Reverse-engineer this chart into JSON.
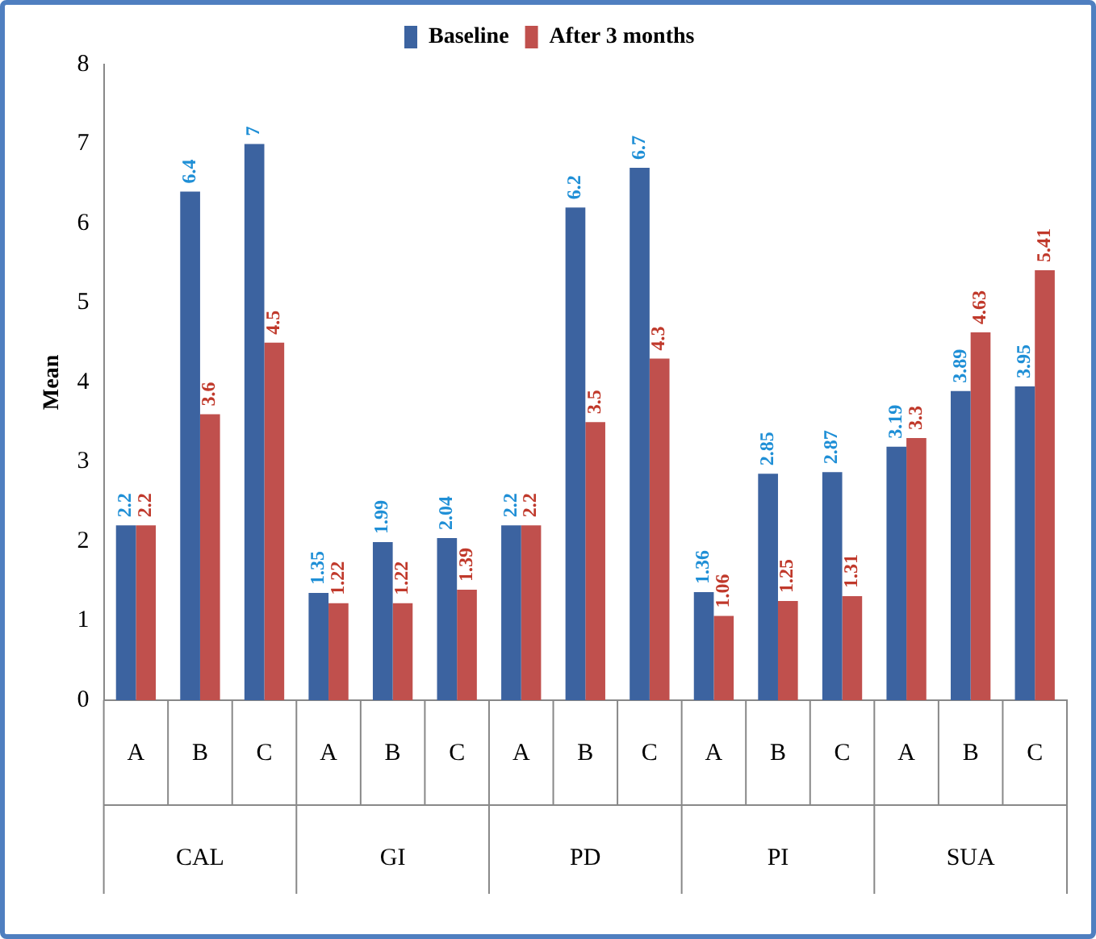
{
  "chart_data": {
    "type": "bar",
    "ylabel": "Mean",
    "categories": [
      "A",
      "B",
      "C",
      "A",
      "B",
      "C",
      "A",
      "B",
      "C",
      "A",
      "B",
      "C",
      "A",
      "B",
      "C"
    ],
    "series": [
      {
        "name": "Baseline",
        "color": "#3c63a0",
        "values": [
          2.2,
          6.4,
          7,
          1.35,
          1.99,
          2.04,
          2.2,
          6.2,
          6.7,
          1.36,
          2.85,
          2.87,
          3.19,
          3.89,
          3.95
        ]
      },
      {
        "name": "After 3 months",
        "color": "#c0504d",
        "values": [
          2.2,
          3.6,
          4.5,
          1.22,
          1.22,
          1.39,
          2.2,
          3.5,
          4.3,
          1.06,
          1.25,
          1.31,
          3.3,
          4.63,
          5.41
        ]
      }
    ],
    "annotations": [
      "CAL",
      "GI",
      "PD",
      "PI",
      "SUA"
    ],
    "ylim": [
      0,
      8
    ],
    "yticks": [
      0,
      1,
      2,
      3,
      4,
      5,
      6,
      7,
      8
    ],
    "grid": false,
    "legend": "top",
    "data_labels": true
  }
}
